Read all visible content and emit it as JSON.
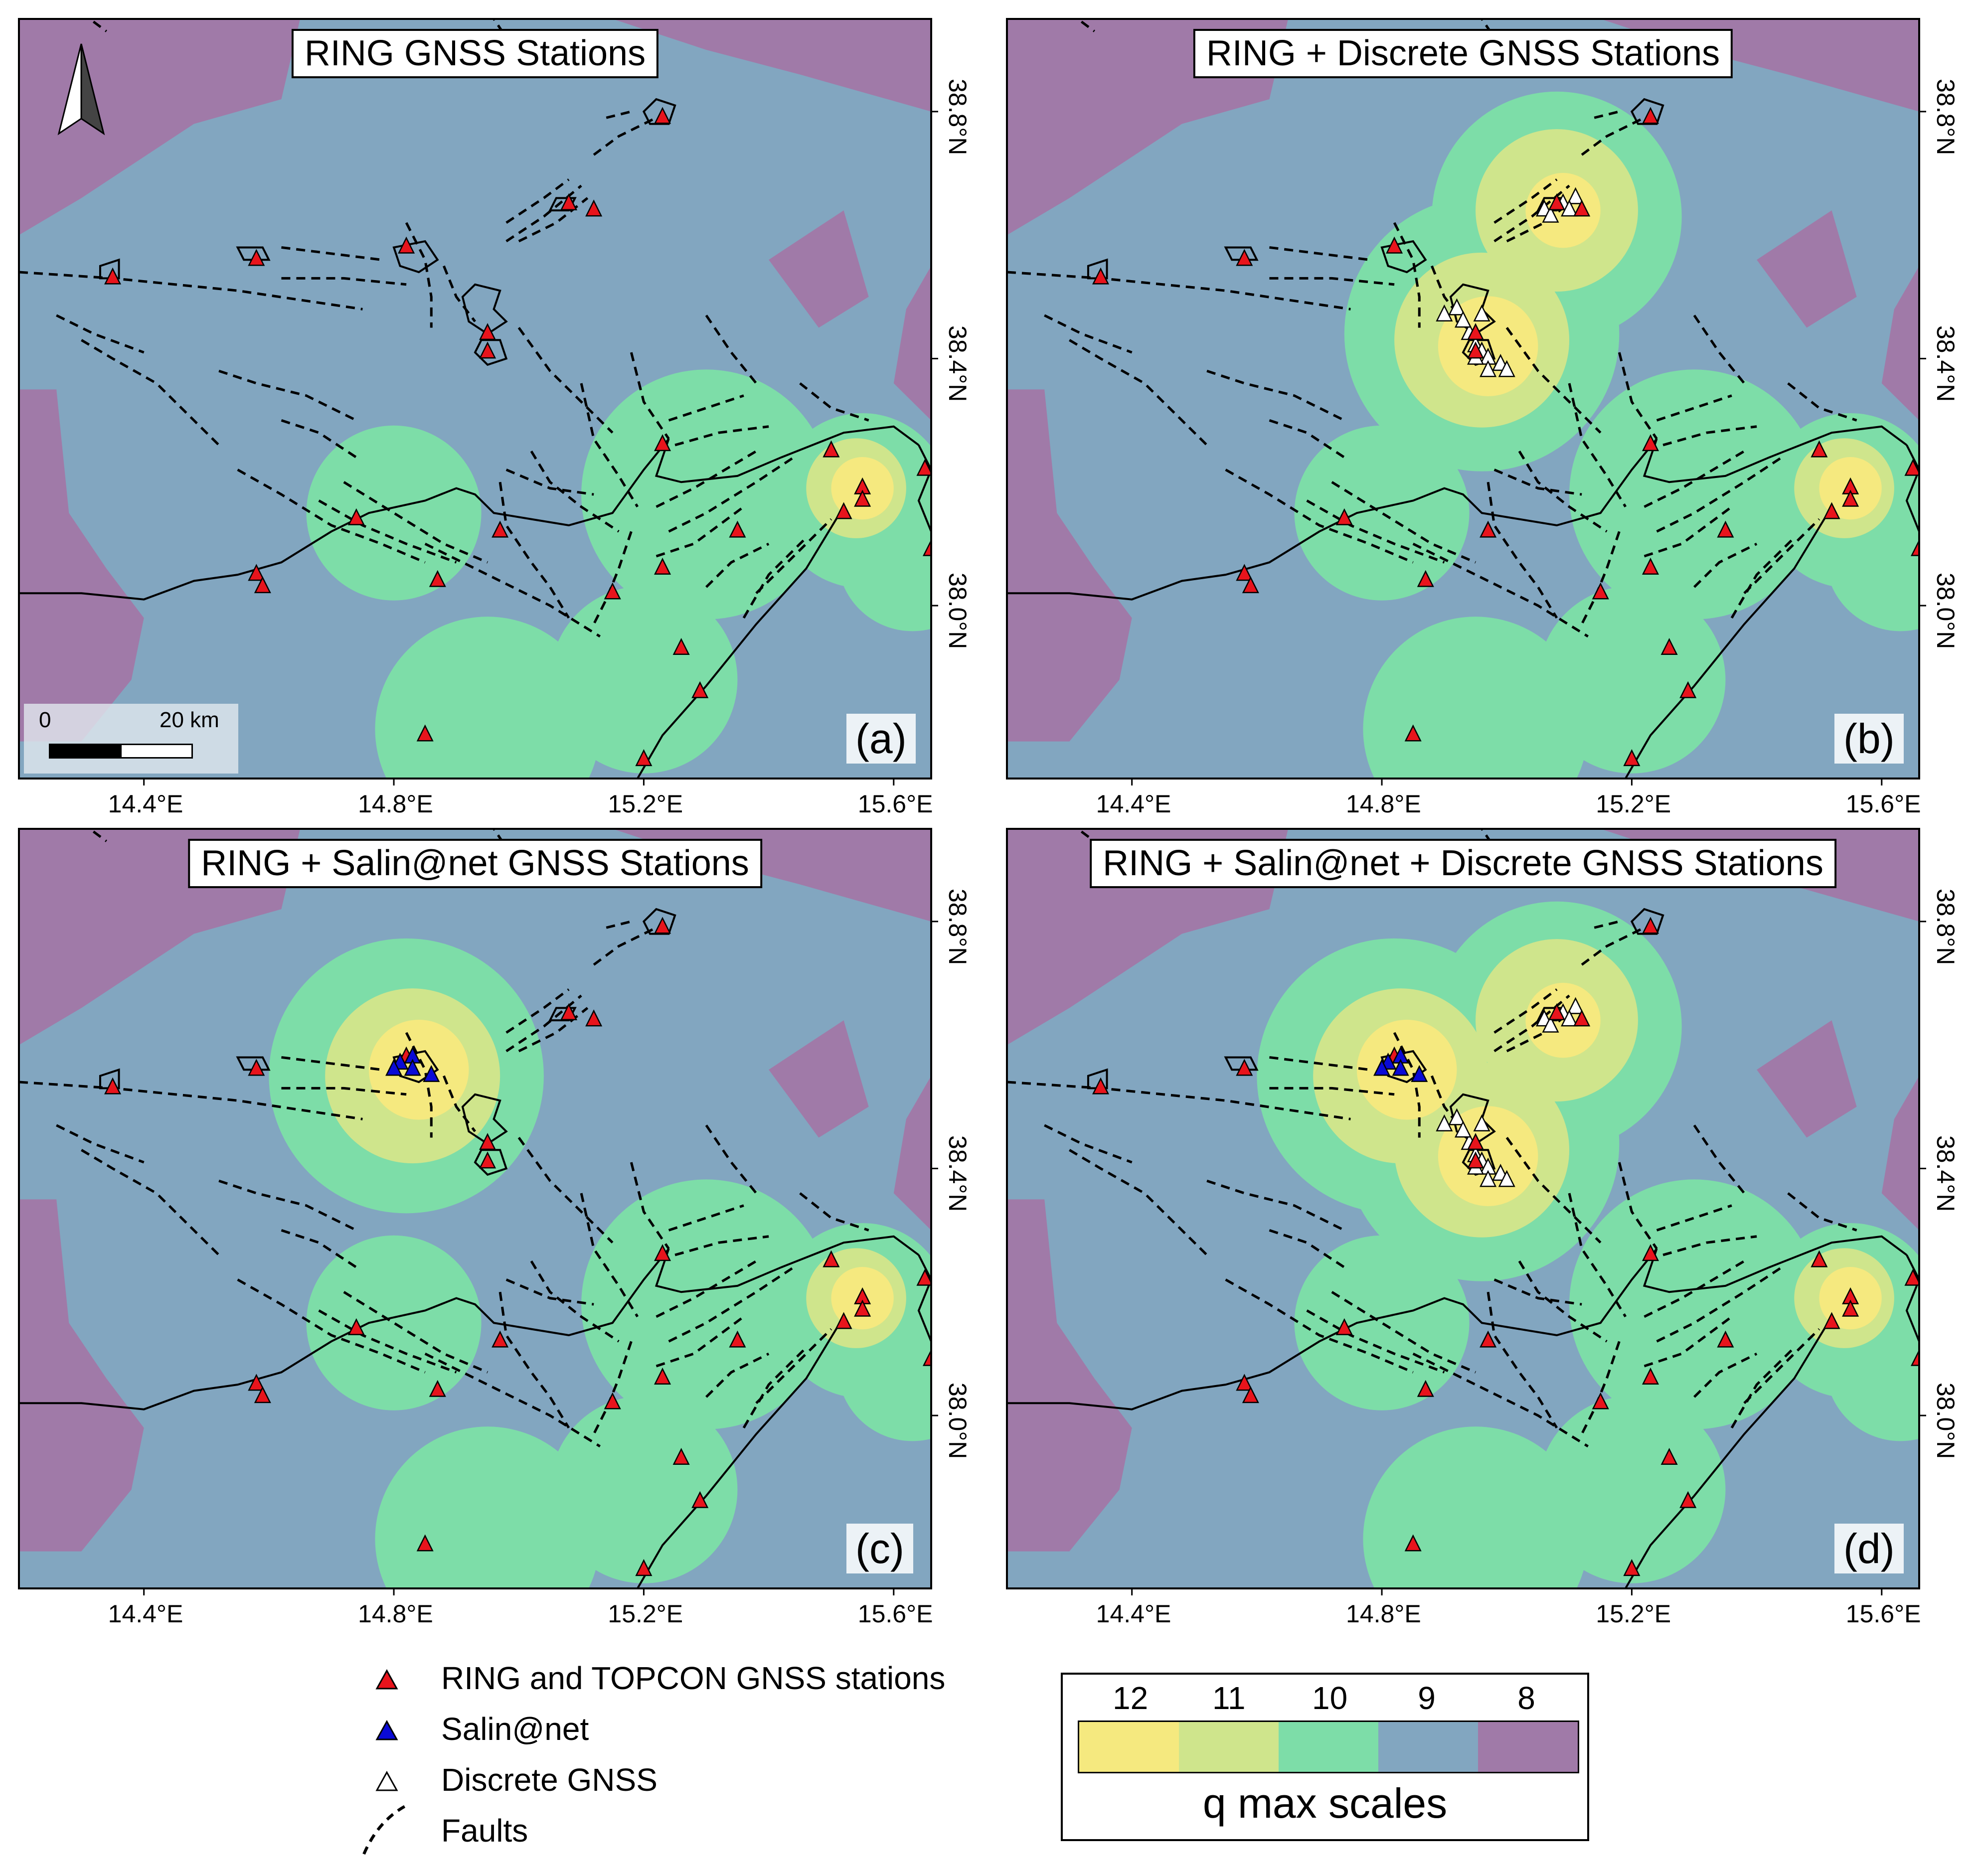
{
  "panels": [
    {
      "id": "a",
      "title": "RING GNSS Stations",
      "label": "(a)",
      "layers": [
        "ring"
      ]
    },
    {
      "id": "b",
      "title": "RING + Discrete GNSS Stations",
      "label": "(b)",
      "layers": [
        "ring",
        "discrete"
      ]
    },
    {
      "id": "c",
      "title": "RING + Salin@net GNSS Stations",
      "label": "(c)",
      "layers": [
        "ring",
        "salinet"
      ]
    },
    {
      "id": "d",
      "title": "RING + Salin@net + Discrete GNSS Stations",
      "label": "(d)",
      "layers": [
        "ring",
        "salinet",
        "discrete"
      ]
    }
  ],
  "axes": {
    "lon_ticks": [
      "14.4°E",
      "14.8°E",
      "15.2°E",
      "15.6°E"
    ],
    "lat_ticks": [
      "38.8°N",
      "38.4°N",
      "38.0°N"
    ]
  },
  "scalebar": {
    "start": "0",
    "end": "20 km"
  },
  "north_arrow": "north-arrow-icon",
  "legend": {
    "items": [
      {
        "label": "RING and TOPCON GNSS stations",
        "symbol": "red-triangle-icon",
        "color": "#e8141c"
      },
      {
        "label": "Salin@net",
        "symbol": "blue-triangle-icon",
        "color": "#0a0ad6"
      },
      {
        "label": "Discrete GNSS",
        "symbol": "white-triangle-icon",
        "color": "#ffffff"
      },
      {
        "label": "Faults",
        "symbol": "dashed-line-icon",
        "color": "#000000"
      }
    ]
  },
  "colorbar": {
    "title": "q max scales",
    "levels": [
      {
        "label": "12",
        "color": "#f5e97f"
      },
      {
        "label": "11",
        "color": "#cfe58c"
      },
      {
        "label": "10",
        "color": "#7ddda8"
      },
      {
        "label": "9",
        "color": "#82a6c0"
      },
      {
        "label": "8",
        "color": "#a07aa8"
      }
    ]
  },
  "colors": {
    "q8": "#a07aa8",
    "q9": "#82a6c0",
    "q10": "#7ddda8",
    "q11": "#cfe58c",
    "q12": "#f5e97f",
    "coast": "#000000"
  }
}
